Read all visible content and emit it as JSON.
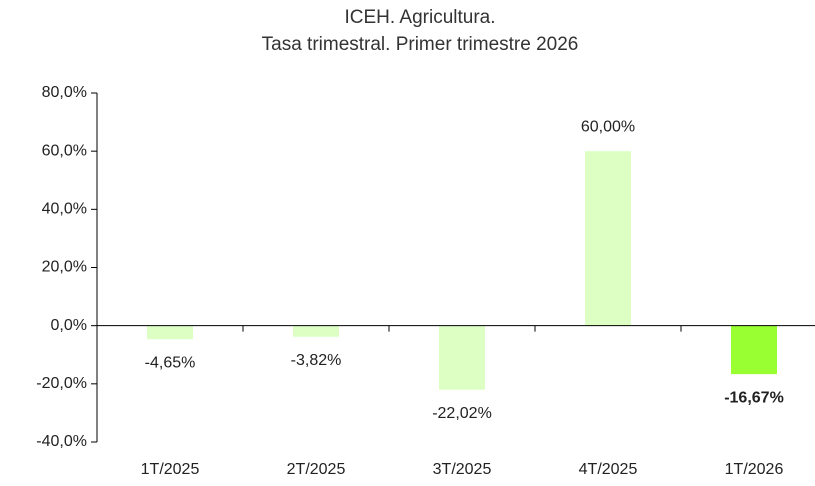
{
  "chart_data": {
    "type": "bar",
    "title": "ICEH. Agricultura.",
    "subtitle": "Tasa trimestral. Primer trimestre 2026",
    "categories": [
      "1T/2025",
      "2T/2025",
      "3T/2025",
      "4T/2025",
      "1T/2026"
    ],
    "values": [
      -4.65,
      -3.82,
      -22.02,
      60,
      -16.67
    ],
    "value_labels": [
      "-4,65%",
      "-3,82%",
      "-22,02%",
      "60,00%",
      "-16,67%"
    ],
    "colors": [
      "#ddffc4",
      "#ddffc4",
      "#ddffc4",
      "#ddffc4",
      "#99ff33"
    ],
    "value_labels_bold": [
      false,
      false,
      false,
      false,
      true
    ],
    "ylim": [
      -40,
      80
    ],
    "yticks": [
      {
        "value": -40,
        "label": "-40,0%"
      },
      {
        "value": -20,
        "label": "-20,0%"
      },
      {
        "value": 0,
        "label": "0,0%"
      },
      {
        "value": 20,
        "label": "20,0%"
      },
      {
        "value": 40,
        "label": "40,0%"
      },
      {
        "value": 60,
        "label": "60,0%"
      },
      {
        "value": 80,
        "label": "80,0%"
      }
    ],
    "grid": false
  }
}
